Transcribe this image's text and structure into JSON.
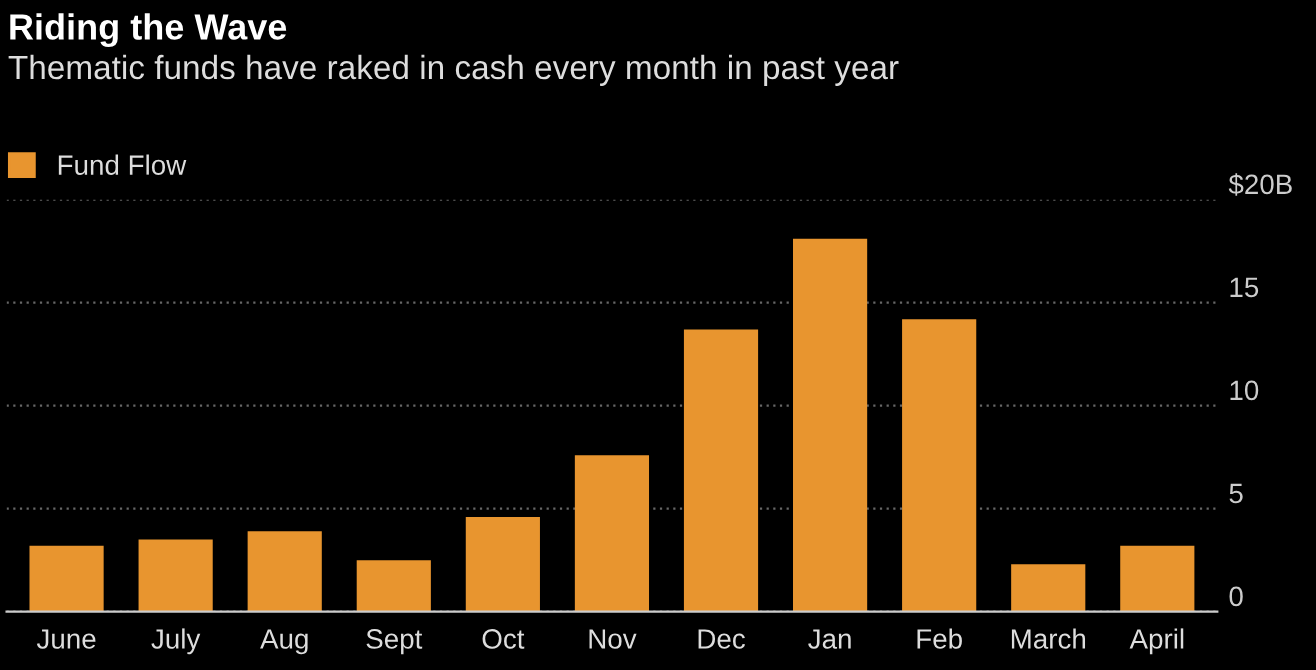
{
  "chart_data": {
    "type": "bar",
    "title": "Riding the Wave",
    "subtitle": "Thematic funds have raked in cash every month in past year",
    "categories": [
      "June",
      "July",
      "Aug",
      "Sept",
      "Oct",
      "Nov",
      "Dec",
      "Jan",
      "Feb",
      "March",
      "April"
    ],
    "series": [
      {
        "name": "Fund Flow",
        "color": "#e8952f",
        "values": [
          3.2,
          3.5,
          3.9,
          2.5,
          4.6,
          7.6,
          13.7,
          18.1,
          14.2,
          2.3,
          3.2
        ]
      }
    ],
    "ylim": [
      0,
      20
    ],
    "yticks": [
      0,
      5,
      10,
      15,
      {
        "value": 20,
        "label": "$20B"
      }
    ],
    "grid": "y",
    "legend": "top left"
  }
}
